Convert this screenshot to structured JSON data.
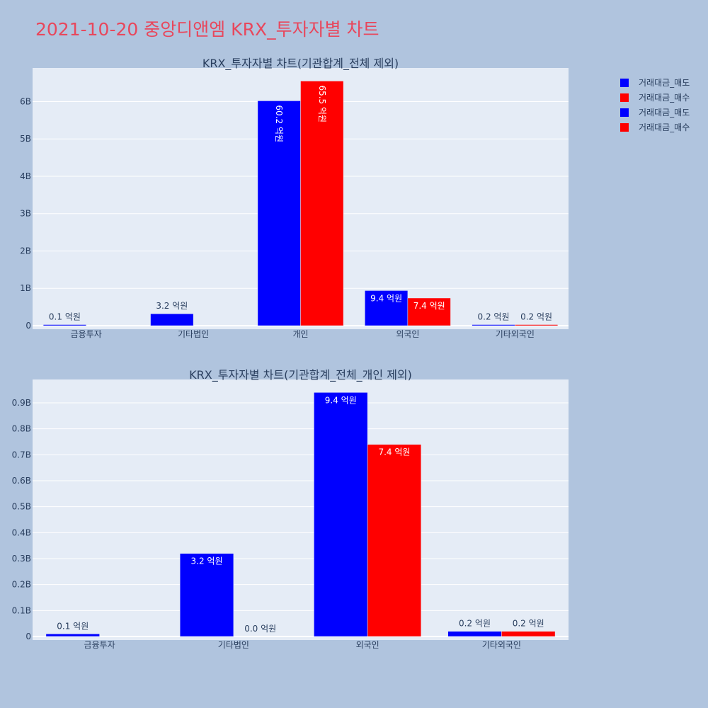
{
  "title": "2021-10-20 중앙디앤엠 KRX_투자자별 차트",
  "colors": {
    "sell": "#0000ff",
    "buy": "#ff0000",
    "title": "#e8475c",
    "plot_bg": "#e5ecf6"
  },
  "legend": [
    {
      "label": "거래대금_매도",
      "color": "#0000ff"
    },
    {
      "label": "거래대금_매수",
      "color": "#ff0000"
    },
    {
      "label": "거래대금_매도",
      "color": "#0000ff"
    },
    {
      "label": "거래대금_매수",
      "color": "#ff0000"
    }
  ],
  "chart_data": [
    {
      "type": "bar",
      "title": "KRX_투자자별 차트(기관합계_전체 제외)",
      "categories": [
        "금융투자",
        "기타법인",
        "개인",
        "외국인",
        "기타외국인"
      ],
      "ylim": [
        0,
        6.9
      ],
      "yticks": [
        0,
        1,
        2,
        3,
        4,
        5,
        6
      ],
      "ytick_labels": [
        "0",
        "1B",
        "2B",
        "3B",
        "4B",
        "5B",
        "6B"
      ],
      "series": [
        {
          "name": "거래대금_매도",
          "values": [
            0.01,
            0.32,
            6.02,
            0.94,
            0.02
          ],
          "labels": [
            "0.1 억원",
            "3.2 억원",
            "60.2 억원",
            "9.4 억원",
            "0.2 억원"
          ]
        },
        {
          "name": "거래대금_매수",
          "values": [
            null,
            null,
            6.55,
            0.74,
            0.02
          ],
          "labels": [
            "",
            "",
            "65.5 억원",
            "7.4 억원",
            "0.2 억원"
          ]
        }
      ]
    },
    {
      "type": "bar",
      "title": "KRX_투자자별 차트(기관합계_전체_개인 제외)",
      "categories": [
        "금융투자",
        "기타법인",
        "외국인",
        "기타외국인"
      ],
      "ylim": [
        0,
        0.99
      ],
      "yticks": [
        0,
        0.1,
        0.2,
        0.3,
        0.4,
        0.5,
        0.6,
        0.7,
        0.8,
        0.9
      ],
      "ytick_labels": [
        "0",
        "0.1B",
        "0.2B",
        "0.3B",
        "0.4B",
        "0.5B",
        "0.6B",
        "0.7B",
        "0.8B",
        "0.9B"
      ],
      "series": [
        {
          "name": "거래대금_매도",
          "values": [
            0.01,
            0.32,
            0.94,
            0.02
          ],
          "labels": [
            "0.1 억원",
            "3.2 억원",
            "9.4 억원",
            "0.2 억원"
          ]
        },
        {
          "name": "거래대금_매수",
          "values": [
            null,
            0.0,
            0.74,
            0.02
          ],
          "labels": [
            "",
            "0.0 억원",
            "7.4 억원",
            "0.2 억원"
          ]
        }
      ]
    }
  ]
}
